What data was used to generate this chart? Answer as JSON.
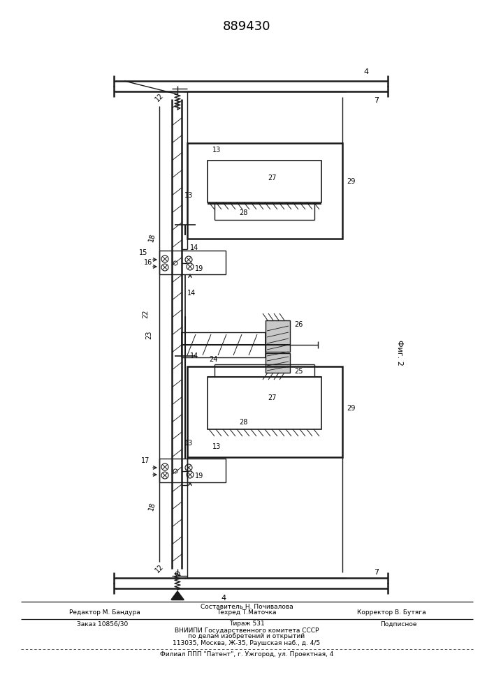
{
  "title": "889430",
  "bg_color": "#ffffff",
  "lc": "#1a1a1a",
  "footer": {
    "l1": "Составитель Н. Почивалова",
    "l2l": "Редактор М. Бандура",
    "l2m": "Техред Т.Маточка",
    "l2r": "Корректор В. Бутяга",
    "l3l": "Заказ 10856/30",
    "l3m": "Тираж 531",
    "l3r": "Подписное",
    "l4": "ВНИИПИ Государственного комитета СССР",
    "l5": "по делам изобретений и открытий",
    "l6": "113035, Москва, Ж-35, Раушская наб., д. 4/5",
    "l7": "Филиал ППП \"Патент\", г. Ужгород, ул. Проектная, 4"
  }
}
